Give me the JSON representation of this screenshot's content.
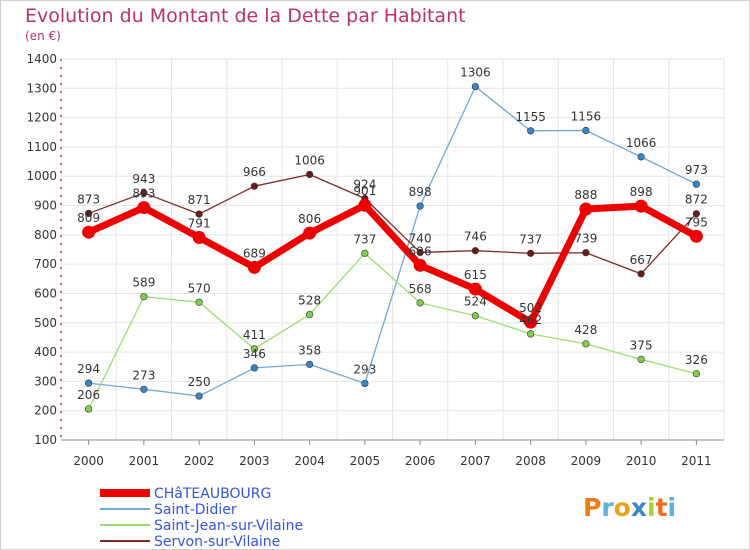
{
  "title": "Evolution du Montant de la Dette par Habitant",
  "unit_label": "(en €)",
  "logo": "Proxiti",
  "chart_data": {
    "type": "line",
    "title": "Evolution du Montant de la Dette par Habitant",
    "subtitle": "(en €)",
    "x": [
      "2000",
      "2001",
      "2002",
      "2003",
      "2004",
      "2005",
      "2006",
      "2007",
      "2008",
      "2009",
      "2010",
      "2011"
    ],
    "ylim": [
      100,
      1400
    ],
    "yticks": [
      100,
      200,
      300,
      400,
      500,
      600,
      700,
      800,
      900,
      1000,
      1100,
      1200,
      1300,
      1400
    ],
    "grid": true,
    "legend_position": "bottom-left",
    "series": [
      {
        "name": "CHâTEAUBOURG",
        "color": "#ee0000",
        "marker": "#ee0000",
        "emphasis": true,
        "values": [
          809,
          893,
          791,
          689,
          806,
          901,
          696,
          615,
          502,
          888,
          898,
          795
        ]
      },
      {
        "name": "Saint-Didier",
        "color": "#6fa8d8",
        "marker": "#3b86c9",
        "values": [
          294,
          273,
          250,
          346,
          358,
          293,
          898,
          1306,
          1155,
          1156,
          1066,
          973
        ]
      },
      {
        "name": "Saint-Jean-sur-Vilaine",
        "color": "#9edc70",
        "marker": "#7ed04b",
        "values": [
          206,
          589,
          570,
          411,
          528,
          737,
          568,
          524,
          462,
          428,
          375,
          326
        ]
      },
      {
        "name": "Servon-sur-Vilaine",
        "color": "#7d2a2a",
        "marker": "#6a1c1c",
        "values": [
          873,
          943,
          871,
          966,
          1006,
          924,
          740,
          746,
          737,
          739,
          667,
          872
        ]
      }
    ]
  }
}
